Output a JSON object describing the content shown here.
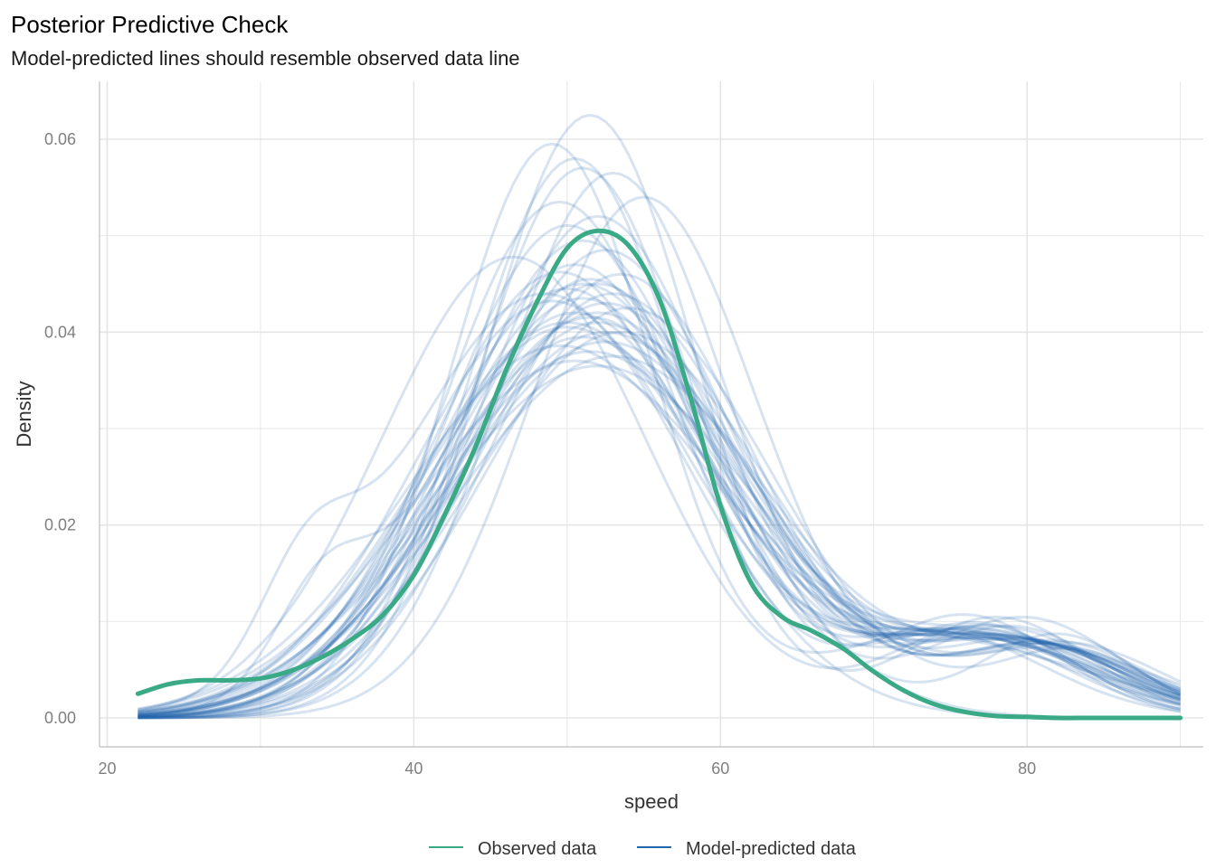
{
  "chart_data": {
    "type": "line",
    "title": "Posterior Predictive Check",
    "subtitle": "Model-predicted lines should resemble observed data line",
    "xlabel": "speed",
    "ylabel": "Density",
    "xlim": [
      19.5,
      91.5
    ],
    "ylim": [
      -0.003,
      0.066
    ],
    "x_ticks": [
      20,
      40,
      60,
      80
    ],
    "x_tick_labels": [
      "20",
      "40",
      "60",
      "80"
    ],
    "y_ticks": [
      0.0,
      0.02,
      0.04,
      0.06
    ],
    "y_tick_labels": [
      "0.00",
      "0.02",
      "0.04",
      "0.06"
    ],
    "grid": true,
    "legend_position": "bottom",
    "legend": [
      {
        "label": "Observed data",
        "color": "#3aaa86"
      },
      {
        "label": "Model-predicted data",
        "color": "#2166ac"
      }
    ],
    "colors": {
      "observed": "#3aaa86",
      "predicted": "#2166ac",
      "grid": "#e5e5e5",
      "axis": "#bdbdbd"
    },
    "x_range": [
      22,
      90
    ],
    "series": [
      {
        "name": "Observed data",
        "x": [
          22,
          24,
          26,
          28,
          30,
          32,
          34,
          36,
          38,
          40,
          42,
          44,
          46,
          48,
          50,
          52,
          54,
          56,
          58,
          60,
          62,
          64,
          66,
          68,
          70,
          72,
          74,
          76,
          78,
          80,
          82,
          84,
          86,
          88,
          90
        ],
        "y": [
          0.0025,
          0.0035,
          0.0039,
          0.0039,
          0.0041,
          0.0049,
          0.0063,
          0.0082,
          0.0107,
          0.0148,
          0.021,
          0.028,
          0.036,
          0.043,
          0.0487,
          0.0505,
          0.049,
          0.0435,
          0.0335,
          0.022,
          0.014,
          0.0105,
          0.009,
          0.0072,
          0.0048,
          0.0028,
          0.0014,
          0.0006,
          0.0002,
          0.0001,
          0.0,
          0.0,
          0.0,
          0.0,
          0.0
        ]
      }
    ],
    "predicted_draws": [
      {
        "mu": 51.5,
        "sigma": 6.8,
        "amp": 0.0625,
        "w2": 0.17,
        "mu2": 76,
        "s2": 6
      },
      {
        "mu": 49.0,
        "sigma": 6.6,
        "amp": 0.0595,
        "w2": 0.15,
        "mu2": 74,
        "s2": 7
      },
      {
        "mu": 50.5,
        "sigma": 6.9,
        "amp": 0.058,
        "w2": 0.18,
        "mu2": 78,
        "s2": 6
      },
      {
        "mu": 51.0,
        "sigma": 7.0,
        "amp": 0.057,
        "w2": 0.16,
        "mu2": 75,
        "s2": 7
      },
      {
        "mu": 53.0,
        "sigma": 7.3,
        "amp": 0.0565,
        "w2": 0.17,
        "mu2": 77,
        "s2": 6
      },
      {
        "mu": 55.0,
        "sigma": 7.4,
        "amp": 0.054,
        "w2": 0.19,
        "mu2": 80,
        "s2": 6
      },
      {
        "mu": 49.5,
        "sigma": 7.6,
        "amp": 0.0535,
        "w2": 0.17,
        "mu2": 76,
        "s2": 7
      },
      {
        "mu": 52.0,
        "sigma": 7.8,
        "amp": 0.052,
        "w2": 0.18,
        "mu2": 78,
        "s2": 7
      },
      {
        "mu": 50.0,
        "sigma": 7.9,
        "amp": 0.051,
        "w2": 0.16,
        "mu2": 75,
        "s2": 8
      },
      {
        "mu": 51.0,
        "sigma": 8.1,
        "amp": 0.0495,
        "w2": 0.19,
        "mu2": 79,
        "s2": 6
      },
      {
        "mu": 52.5,
        "sigma": 8.2,
        "amp": 0.0485,
        "w2": 0.17,
        "mu2": 77,
        "s2": 7
      },
      {
        "mu": 46.5,
        "sigma": 8.6,
        "amp": 0.0478,
        "w2": 0.2,
        "mu2": 77,
        "s2": 6
      },
      {
        "mu": 50.5,
        "sigma": 8.3,
        "amp": 0.047,
        "w2": 0.18,
        "mu2": 78,
        "s2": 7
      },
      {
        "mu": 53.5,
        "sigma": 8.5,
        "amp": 0.046,
        "w2": 0.17,
        "mu2": 80,
        "s2": 6
      },
      {
        "mu": 49.5,
        "sigma": 8.4,
        "amp": 0.0462,
        "w2": 0.18,
        "mu2": 76,
        "s2": 8
      },
      {
        "mu": 51.5,
        "sigma": 8.6,
        "amp": 0.0455,
        "w2": 0.19,
        "mu2": 82,
        "s2": 5
      },
      {
        "mu": 52.0,
        "sigma": 8.7,
        "amp": 0.045,
        "w2": 0.18,
        "mu2": 79,
        "s2": 7
      },
      {
        "mu": 50.0,
        "sigma": 8.8,
        "amp": 0.0445,
        "w2": 0.2,
        "mu2": 77,
        "s2": 7
      },
      {
        "mu": 53.0,
        "sigma": 8.9,
        "amp": 0.044,
        "w2": 0.17,
        "mu2": 81,
        "s2": 6
      },
      {
        "mu": 51.0,
        "sigma": 9.0,
        "amp": 0.0435,
        "w2": 0.19,
        "mu2": 78,
        "s2": 7
      },
      {
        "mu": 52.5,
        "sigma": 9.1,
        "amp": 0.043,
        "w2": 0.18,
        "mu2": 80,
        "s2": 7
      },
      {
        "mu": 49.0,
        "sigma": 9.0,
        "amp": 0.0432,
        "w2": 0.2,
        "mu2": 76,
        "s2": 8
      },
      {
        "mu": 54.0,
        "sigma": 9.2,
        "amp": 0.0425,
        "w2": 0.17,
        "mu2": 82,
        "s2": 6
      },
      {
        "mu": 50.5,
        "sigma": 9.3,
        "amp": 0.042,
        "w2": 0.19,
        "mu2": 79,
        "s2": 7
      },
      {
        "mu": 51.5,
        "sigma": 9.4,
        "amp": 0.0415,
        "w2": 0.2,
        "mu2": 78,
        "s2": 8
      },
      {
        "mu": 52.0,
        "sigma": 9.5,
        "amp": 0.041,
        "w2": 0.18,
        "mu2": 81,
        "s2": 6
      },
      {
        "mu": 50.0,
        "sigma": 9.6,
        "amp": 0.0405,
        "w2": 0.19,
        "mu2": 77,
        "s2": 8
      },
      {
        "mu": 53.5,
        "sigma": 9.7,
        "amp": 0.04,
        "w2": 0.17,
        "mu2": 83,
        "s2": 5
      },
      {
        "mu": 51.0,
        "sigma": 9.8,
        "amp": 0.0395,
        "w2": 0.2,
        "mu2": 79,
        "s2": 7
      },
      {
        "mu": 52.5,
        "sigma": 10.0,
        "amp": 0.039,
        "w2": 0.19,
        "mu2": 80,
        "s2": 7
      },
      {
        "mu": 49.5,
        "sigma": 10.1,
        "amp": 0.0385,
        "w2": 0.18,
        "mu2": 76,
        "s2": 9
      },
      {
        "mu": 51.5,
        "sigma": 10.2,
        "amp": 0.038,
        "w2": 0.2,
        "mu2": 82,
        "s2": 6
      },
      {
        "mu": 53.0,
        "sigma": 10.3,
        "amp": 0.0375,
        "w2": 0.18,
        "mu2": 81,
        "s2": 7
      },
      {
        "mu": 50.5,
        "sigma": 10.4,
        "amp": 0.037,
        "w2": 0.19,
        "mu2": 78,
        "s2": 8
      },
      {
        "mu": 52.0,
        "sigma": 10.6,
        "amp": 0.0365,
        "w2": 0.2,
        "mu2": 83,
        "s2": 6
      },
      {
        "mu": 48.5,
        "sigma": 9.2,
        "amp": 0.044,
        "w2": 0.22,
        "mu2": 33,
        "s2": 3
      },
      {
        "mu": 51.0,
        "sigma": 9.0,
        "amp": 0.045,
        "w2": 0.2,
        "mu2": 34,
        "s2": 3
      },
      {
        "mu": 52.0,
        "sigma": 9.4,
        "amp": 0.042,
        "w2": 0.18,
        "mu2": 80,
        "s2": 8
      },
      {
        "mu": 50.0,
        "sigma": 9.7,
        "amp": 0.041,
        "w2": 0.19,
        "mu2": 77,
        "s2": 7
      },
      {
        "mu": 52.5,
        "sigma": 9.9,
        "amp": 0.04,
        "w2": 0.17,
        "mu2": 82,
        "s2": 6
      }
    ]
  }
}
